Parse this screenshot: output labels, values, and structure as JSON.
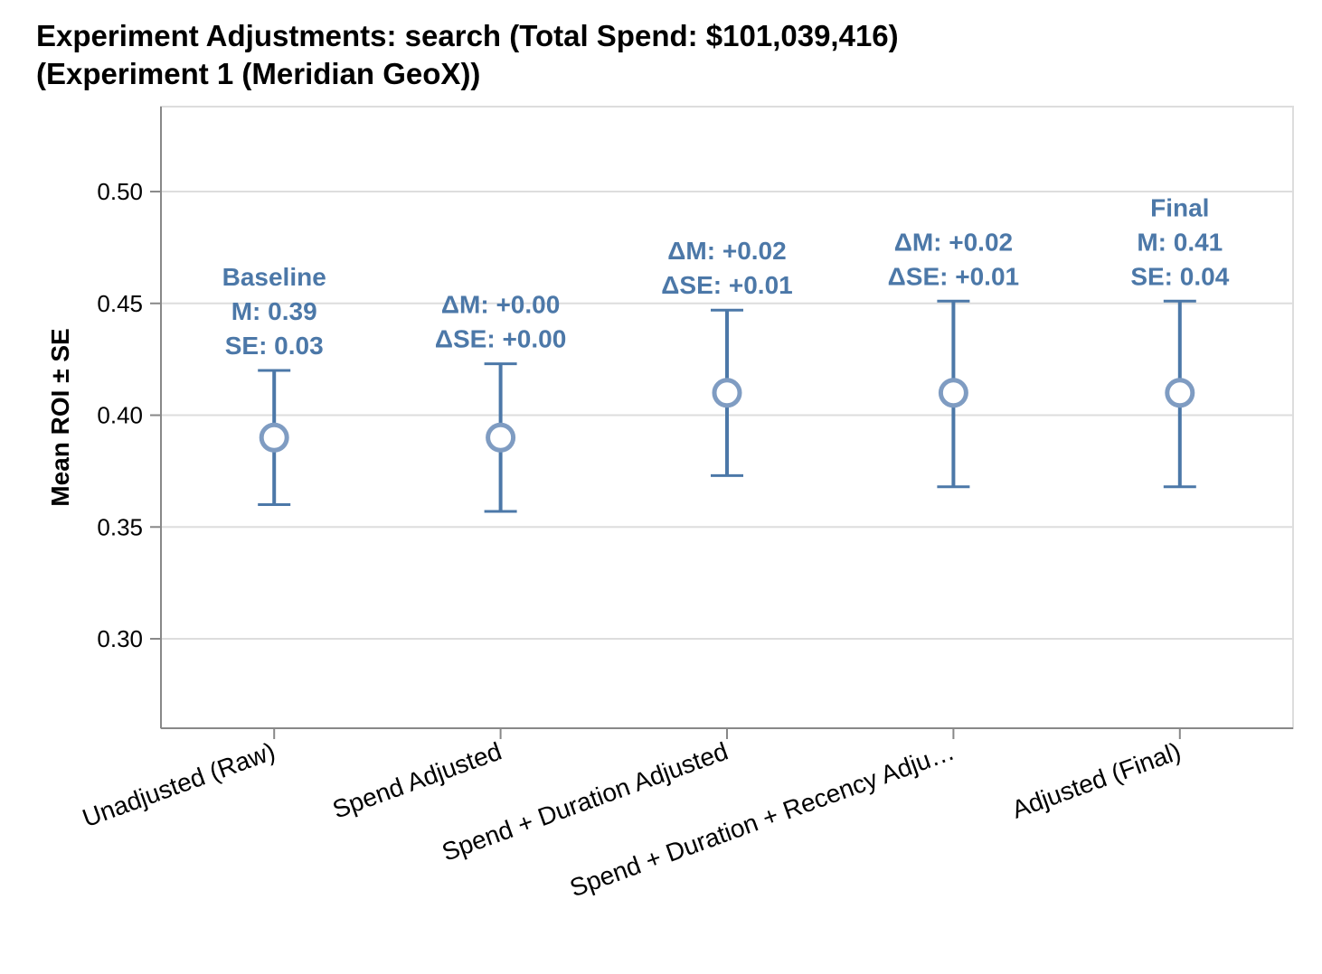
{
  "chart_data": {
    "type": "errorbar",
    "title_lines": [
      "Experiment Adjustments: search (Total Spend: $101,039,416)",
      "(Experiment 1 (Meridian GeoX))"
    ],
    "xlabel": "",
    "ylabel": "Mean ROI ± SE",
    "ylim": [
      0.26,
      0.538
    ],
    "yticks": [
      0.3,
      0.35,
      0.4,
      0.45,
      0.5
    ],
    "ytick_labels": [
      "0.30",
      "0.35",
      "0.40",
      "0.45",
      "0.50"
    ],
    "grid": true,
    "color": "#4c78a8",
    "categories": [
      "Unadjusted (Raw)",
      "Spend Adjusted",
      "Spend + Duration Adjusted",
      "Spend + Duration + Recency Adju…",
      "Adjusted (Final)"
    ],
    "points": [
      {
        "category": "Unadjusted (Raw)",
        "mean": 0.39,
        "lower": 0.36,
        "upper": 0.42,
        "annotation": [
          "Baseline",
          "M: 0.39",
          "SE: 0.03"
        ]
      },
      {
        "category": "Spend Adjusted",
        "mean": 0.39,
        "lower": 0.357,
        "upper": 0.423,
        "annotation": [
          "ΔM: +0.00",
          "ΔSE: +0.00"
        ]
      },
      {
        "category": "Spend + Duration Adjusted",
        "mean": 0.41,
        "lower": 0.373,
        "upper": 0.447,
        "annotation": [
          "ΔM: +0.02",
          "ΔSE: +0.01"
        ]
      },
      {
        "category": "Spend + Duration + Recency Adju…",
        "mean": 0.41,
        "lower": 0.368,
        "upper": 0.451,
        "annotation": [
          "ΔM: +0.02",
          "ΔSE: +0.01"
        ]
      },
      {
        "category": "Adjusted (Final)",
        "mean": 0.41,
        "lower": 0.368,
        "upper": 0.451,
        "annotation": [
          "Final",
          "M: 0.41",
          "SE: 0.04"
        ]
      }
    ]
  }
}
